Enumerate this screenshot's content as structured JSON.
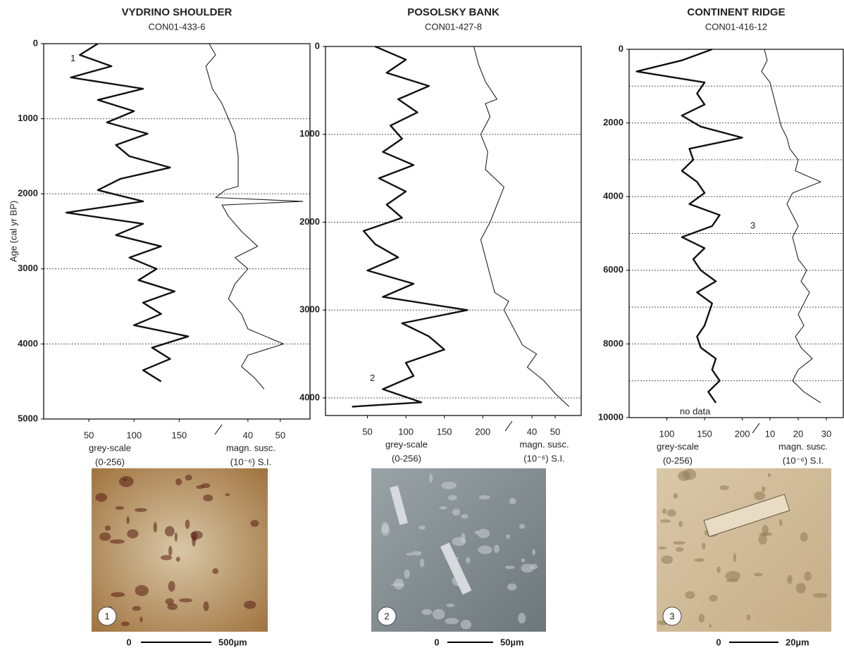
{
  "chart_data": [
    {
      "type": "profile",
      "title": "VYDRINO SHOULDER",
      "subtitle": "CON01-433-6",
      "ylabel": "Age (cal yr BP)",
      "ylim": [
        0,
        5000
      ],
      "yticks": [
        0,
        1000,
        2000,
        3000,
        4000,
        5000
      ],
      "ygrid": [
        1000,
        2000,
        3000,
        4000
      ],
      "annotations": [
        "1"
      ],
      "series": [
        {
          "name": "grey-scale",
          "unit": "(0-256)",
          "color": "#111111",
          "xlim": [
            0,
            170
          ],
          "xticks": [
            50,
            100,
            150
          ],
          "y": [
            0,
            150,
            300,
            450,
            600,
            750,
            900,
            1050,
            1200,
            1350,
            1500,
            1650,
            1800,
            1950,
            2100,
            2250,
            2400,
            2550,
            2700,
            2850,
            3000,
            3150,
            3300,
            3450,
            3600,
            3750,
            3900,
            4050,
            4200,
            4350,
            4500
          ],
          "values": [
            60,
            40,
            75,
            30,
            110,
            60,
            100,
            70,
            115,
            80,
            95,
            140,
            85,
            60,
            110,
            25,
            110,
            80,
            130,
            95,
            125,
            105,
            145,
            110,
            130,
            100,
            160,
            120,
            140,
            110,
            130
          ]
        },
        {
          "name": "magn. susc.",
          "unit": "(10⁻⁶) S.I.",
          "color": "#222222",
          "xlim": [
            25,
            57
          ],
          "xticks": [
            40,
            50
          ],
          "y": [
            0,
            150,
            300,
            450,
            600,
            800,
            1000,
            1200,
            1500,
            1800,
            1900,
            1950,
            2050,
            2100,
            2150,
            2300,
            2500,
            2700,
            2850,
            3000,
            3200,
            3400,
            3600,
            3800,
            4000,
            4150,
            4300,
            4450,
            4600
          ],
          "values": [
            28,
            30,
            27,
            28,
            29,
            32,
            34,
            36,
            37,
            37,
            37,
            33,
            30,
            57,
            32,
            34,
            38,
            43,
            36,
            40,
            36,
            34,
            38,
            40,
            51,
            40,
            38,
            42,
            45
          ]
        }
      ]
    },
    {
      "type": "profile",
      "title": "POSOLSKY BANK",
      "subtitle": "CON01-427-8",
      "ylim": [
        0,
        4200
      ],
      "yticks": [
        0,
        1000,
        2000,
        3000,
        4000
      ],
      "ygrid": [
        1000,
        2000,
        3000,
        4000
      ],
      "annotations": [
        "2"
      ],
      "series": [
        {
          "name": "grey-scale",
          "unit": "(0-256)",
          "color": "#111111",
          "xlim": [
            0,
            230
          ],
          "xticks": [
            50,
            100,
            150,
            200
          ],
          "y": [
            0,
            150,
            300,
            450,
            600,
            750,
            900,
            1050,
            1200,
            1350,
            1500,
            1650,
            1800,
            1950,
            2100,
            2250,
            2400,
            2550,
            2700,
            2850,
            3000,
            3150,
            3300,
            3450,
            3600,
            3750,
            3900,
            4050,
            4100
          ],
          "values": [
            60,
            100,
            75,
            130,
            90,
            115,
            80,
            95,
            70,
            110,
            65,
            100,
            75,
            95,
            45,
            60,
            90,
            50,
            110,
            70,
            180,
            95,
            130,
            150,
            100,
            110,
            70,
            120,
            30
          ]
        },
        {
          "name": "magn. susc.",
          "unit": "(10⁻⁶) S.I.",
          "color": "#222222",
          "xlim": [
            10,
            60
          ],
          "xticks": [
            40,
            50
          ],
          "y": [
            0,
            200,
            400,
            600,
            650,
            800,
            1000,
            1200,
            1400,
            1600,
            1800,
            2000,
            2200,
            2400,
            2600,
            2800,
            2900,
            3000,
            3200,
            3400,
            3500,
            3650,
            3800,
            3950,
            4100
          ],
          "values": [
            15,
            17,
            20,
            25,
            20,
            22,
            18,
            21,
            20,
            28,
            25,
            22,
            18,
            20,
            22,
            24,
            30,
            28,
            32,
            36,
            42,
            38,
            45,
            50,
            56
          ]
        }
      ]
    },
    {
      "type": "profile",
      "title": "CONTINENT RIDGE",
      "subtitle": "CON01-416-12",
      "ylim": [
        0,
        10000
      ],
      "yticks": [
        0,
        2000,
        4000,
        6000,
        8000,
        10000
      ],
      "ygrid": [
        1000,
        2000,
        3000,
        4000,
        5000,
        6000,
        7000,
        8000,
        9000
      ],
      "annotations": [
        "3",
        "no data"
      ],
      "series": [
        {
          "name": "grey-scale",
          "unit": "(0-256)",
          "color": "#111111",
          "xlim": [
            50,
            220
          ],
          "xticks": [
            100,
            150,
            200
          ],
          "y": [
            0,
            300,
            600,
            900,
            1200,
            1500,
            1800,
            2100,
            2400,
            2700,
            3000,
            3300,
            3600,
            3900,
            4200,
            4500,
            4800,
            5100,
            5400,
            5700,
            6000,
            6300,
            6600,
            6900,
            7200,
            7500,
            7800,
            8100,
            8400,
            8700,
            9000,
            9300,
            9600
          ],
          "values": [
            160,
            120,
            60,
            150,
            140,
            150,
            120,
            145,
            200,
            130,
            135,
            120,
            140,
            150,
            130,
            170,
            160,
            120,
            150,
            135,
            145,
            165,
            140,
            160,
            155,
            150,
            140,
            145,
            165,
            160,
            170,
            155,
            165
          ]
        },
        {
          "name": "magn. susc.",
          "unit": "(10⁻⁶) S.I.",
          "color": "#222222",
          "xlim": [
            5,
            36
          ],
          "xticks": [
            10,
            20,
            30
          ],
          "y": [
            0,
            300,
            600,
            900,
            1200,
            1500,
            1800,
            2100,
            2400,
            2700,
            3000,
            3300,
            3600,
            3900,
            4200,
            4500,
            4800,
            5100,
            5400,
            5700,
            6000,
            6300,
            6600,
            6900,
            7200,
            7500,
            7800,
            8100,
            8400,
            8700,
            9000,
            9300,
            9600
          ],
          "values": [
            8,
            9,
            7,
            10,
            11,
            12,
            13,
            14,
            16,
            17,
            20,
            19,
            28,
            18,
            16,
            18,
            20,
            18,
            19,
            20,
            23,
            21,
            24,
            22,
            20,
            22,
            19,
            21,
            25,
            20,
            18,
            22,
            28
          ]
        }
      ]
    }
  ],
  "images": [
    {
      "label": "1",
      "scale_start": "0",
      "scale_end": "500µm"
    },
    {
      "label": "2",
      "scale_start": "0",
      "scale_end": "50µm"
    },
    {
      "label": "3",
      "scale_start": "0",
      "scale_end": "20µm"
    }
  ]
}
